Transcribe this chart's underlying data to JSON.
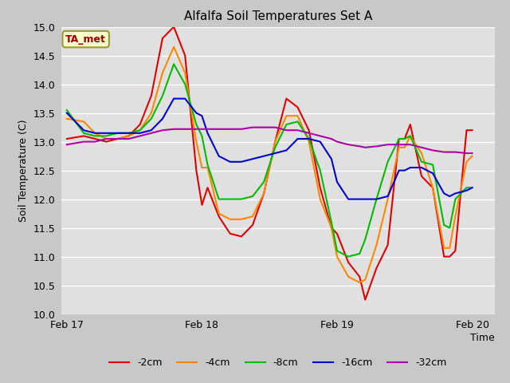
{
  "title": "Alfalfa Soil Temperatures Set A",
  "xlabel": "Time",
  "ylabel": "Soil Temperature (C)",
  "ylim": [
    10.0,
    15.0
  ],
  "yticks": [
    10.0,
    10.5,
    11.0,
    11.5,
    12.0,
    12.5,
    13.0,
    13.5,
    14.0,
    14.5,
    15.0
  ],
  "fig_bg_color": "#c8c8c8",
  "plot_bg_color": "#e0e0e0",
  "grid_color": "#ffffff",
  "annotation_text": "TA_met",
  "annotation_color": "#990000",
  "annotation_bg": "#ffffcc",
  "annotation_border": "#999933",
  "series": {
    "neg2cm": {
      "label": "-2cm",
      "color": "#dd0000",
      "times": [
        0,
        3,
        5,
        7,
        9,
        11,
        13,
        15,
        17,
        19,
        21,
        23,
        24,
        25,
        27,
        29,
        31,
        33,
        35,
        37,
        39,
        41,
        43,
        45,
        47,
        48,
        50,
        52,
        53,
        55,
        57,
        59,
        60,
        61,
        63,
        65,
        67,
        68,
        69,
        71,
        72
      ],
      "values": [
        13.05,
        13.1,
        13.05,
        13.0,
        13.05,
        13.1,
        13.3,
        13.8,
        14.8,
        15.0,
        14.5,
        12.5,
        11.9,
        12.2,
        11.7,
        11.4,
        11.35,
        11.55,
        12.1,
        13.0,
        13.75,
        13.6,
        13.2,
        12.2,
        11.5,
        11.4,
        10.9,
        10.65,
        10.25,
        10.8,
        11.2,
        13.05,
        13.05,
        13.3,
        12.4,
        12.2,
        11.0,
        11.0,
        11.1,
        13.2,
        13.2
      ]
    },
    "neg4cm": {
      "label": "-4cm",
      "color": "#ff8800",
      "times": [
        0,
        3,
        5,
        7,
        9,
        11,
        13,
        15,
        17,
        19,
        21,
        23,
        24,
        25,
        27,
        29,
        31,
        33,
        35,
        37,
        39,
        41,
        43,
        45,
        47,
        48,
        50,
        52,
        53,
        55,
        57,
        59,
        60,
        61,
        63,
        65,
        67,
        68,
        69,
        71,
        72
      ],
      "values": [
        13.4,
        13.35,
        13.15,
        13.05,
        13.05,
        13.1,
        13.2,
        13.5,
        14.2,
        14.65,
        14.2,
        13.0,
        12.55,
        12.55,
        11.75,
        11.65,
        11.65,
        11.7,
        12.1,
        13.0,
        13.45,
        13.45,
        13.0,
        12.0,
        11.5,
        11.0,
        10.65,
        10.55,
        10.6,
        11.2,
        12.0,
        12.9,
        12.9,
        13.1,
        12.8,
        12.2,
        11.15,
        11.15,
        11.7,
        12.65,
        12.75
      ]
    },
    "neg8cm": {
      "label": "-8cm",
      "color": "#00bb00",
      "times": [
        0,
        3,
        5,
        7,
        9,
        11,
        13,
        15,
        17,
        19,
        21,
        23,
        24,
        25,
        27,
        29,
        31,
        33,
        35,
        37,
        39,
        41,
        43,
        45,
        47,
        48,
        50,
        52,
        53,
        55,
        57,
        59,
        60,
        61,
        63,
        65,
        67,
        68,
        69,
        71,
        72
      ],
      "values": [
        13.55,
        13.15,
        13.1,
        13.1,
        13.15,
        13.15,
        13.2,
        13.4,
        13.8,
        14.35,
        14.0,
        13.3,
        13.1,
        12.6,
        12.0,
        12.0,
        12.0,
        12.05,
        12.3,
        12.9,
        13.3,
        13.35,
        13.05,
        12.5,
        11.6,
        11.1,
        11.0,
        11.05,
        11.3,
        12.0,
        12.65,
        13.05,
        13.05,
        13.1,
        12.65,
        12.6,
        11.55,
        11.5,
        12.0,
        12.2,
        12.2
      ]
    },
    "neg16cm": {
      "label": "-16cm",
      "color": "#0000cc",
      "times": [
        0,
        3,
        5,
        7,
        9,
        11,
        13,
        15,
        17,
        19,
        21,
        23,
        24,
        25,
        27,
        29,
        31,
        33,
        35,
        37,
        39,
        41,
        43,
        45,
        47,
        48,
        50,
        52,
        53,
        55,
        57,
        59,
        60,
        61,
        63,
        65,
        67,
        68,
        69,
        71,
        72
      ],
      "values": [
        13.5,
        13.2,
        13.15,
        13.15,
        13.15,
        13.15,
        13.15,
        13.2,
        13.4,
        13.75,
        13.75,
        13.5,
        13.45,
        13.15,
        12.75,
        12.65,
        12.65,
        12.7,
        12.75,
        12.8,
        12.85,
        13.05,
        13.05,
        13.0,
        12.7,
        12.3,
        12.0,
        12.0,
        12.0,
        12.0,
        12.05,
        12.5,
        12.5,
        12.55,
        12.55,
        12.45,
        12.1,
        12.05,
        12.1,
        12.15,
        12.2
      ]
    },
    "neg32cm": {
      "label": "-32cm",
      "color": "#aa00aa",
      "times": [
        0,
        3,
        5,
        7,
        9,
        11,
        13,
        15,
        17,
        19,
        21,
        23,
        24,
        25,
        27,
        29,
        31,
        33,
        35,
        37,
        39,
        41,
        43,
        45,
        47,
        48,
        50,
        52,
        53,
        55,
        57,
        59,
        60,
        61,
        63,
        65,
        67,
        68,
        69,
        71,
        72
      ],
      "values": [
        12.95,
        13.0,
        13.0,
        13.05,
        13.05,
        13.05,
        13.1,
        13.15,
        13.2,
        13.22,
        13.22,
        13.22,
        13.22,
        13.22,
        13.22,
        13.22,
        13.22,
        13.25,
        13.25,
        13.25,
        13.2,
        13.2,
        13.15,
        13.1,
        13.05,
        13.0,
        12.95,
        12.92,
        12.9,
        12.92,
        12.95,
        12.95,
        12.95,
        12.95,
        12.9,
        12.85,
        12.82,
        12.82,
        12.82,
        12.8,
        12.8
      ]
    }
  },
  "xtick_positions": [
    0,
    24,
    48,
    72
  ],
  "xtick_labels": [
    "Feb 17",
    "Feb 18",
    "Feb 19",
    "Feb 20"
  ]
}
